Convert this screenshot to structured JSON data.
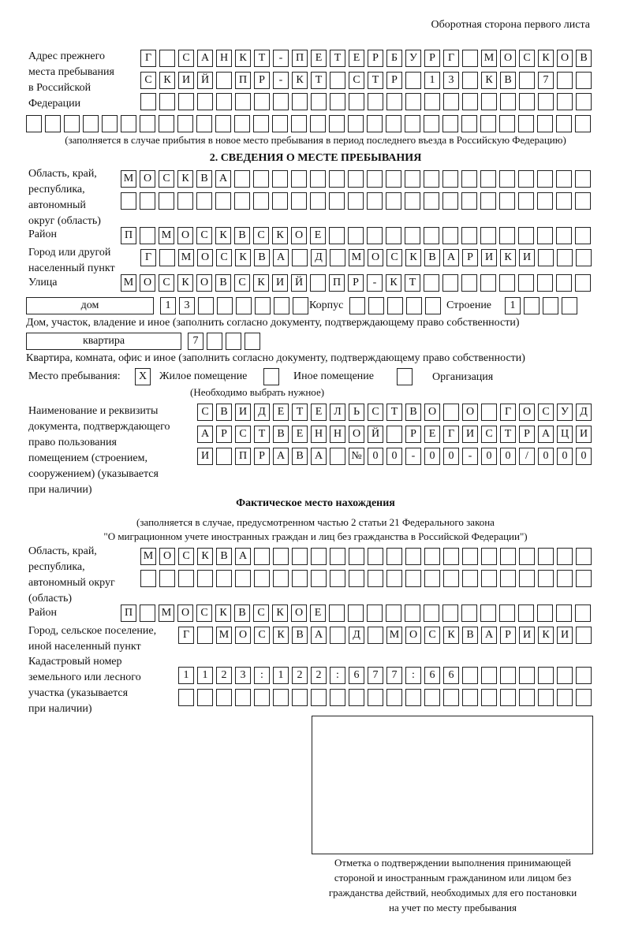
{
  "header": {
    "page_side": "Оборотная сторона первого листа"
  },
  "prev_address": {
    "label": "Адрес прежнего\nместа пребывания\nв Российской\nФедерации",
    "rows": [
      [
        "Г",
        "",
        "С",
        "А",
        "Н",
        "К",
        "Т",
        "-",
        "П",
        "Е",
        "Т",
        "Е",
        "Р",
        "Б",
        "У",
        "Р",
        "Г",
        "",
        "М",
        "О",
        "С",
        "К",
        "О",
        "В"
      ],
      [
        "С",
        "К",
        "И",
        "Й",
        "",
        "П",
        "Р",
        "-",
        "К",
        "Т",
        "",
        "С",
        "Т",
        "Р",
        "",
        "1",
        "3",
        "",
        "К",
        "В",
        "",
        "7",
        "",
        ""
      ],
      [
        "",
        "",
        "",
        "",
        "",
        "",
        "",
        "",
        "",
        "",
        "",
        "",
        "",
        "",
        "",
        "",
        "",
        "",
        "",
        "",
        "",
        "",
        "",
        ""
      ],
      [
        "",
        "",
        "",
        "",
        "",
        "",
        "",
        "",
        "",
        "",
        "",
        "",
        "",
        "",
        "",
        "",
        "",
        "",
        "",
        "",
        "",
        "",
        "",
        "",
        "",
        "",
        "",
        "",
        "",
        ""
      ]
    ],
    "note": "(заполняется в случае прибытия в новое место пребывания в период последнего въезда в Российскую Федерацию)"
  },
  "section2": {
    "title": "2. СВЕДЕНИЯ О МЕСТЕ ПРЕБЫВАНИЯ",
    "region_label": "Область, край,\nреспублика,\nавтономный\nокруг (область)",
    "region_rows": [
      [
        "М",
        "О",
        "С",
        "К",
        "В",
        "А",
        "",
        "",
        "",
        "",
        "",
        "",
        "",
        "",
        "",
        "",
        "",
        "",
        "",
        "",
        "",
        "",
        "",
        "",
        ""
      ],
      [
        "",
        "",
        "",
        "",
        "",
        "",
        "",
        "",
        "",
        "",
        "",
        "",
        "",
        "",
        "",
        "",
        "",
        "",
        "",
        "",
        "",
        "",
        "",
        "",
        ""
      ]
    ],
    "district_label": "Район",
    "district_row": [
      "П",
      "",
      "М",
      "О",
      "С",
      "К",
      "В",
      "С",
      "К",
      "О",
      "Е",
      "",
      "",
      "",
      "",
      "",
      "",
      "",
      "",
      "",
      "",
      "",
      "",
      "",
      ""
    ],
    "city_label": "Город или другой\nнаселенный пункт",
    "city_row": [
      "Г",
      "",
      "М",
      "О",
      "С",
      "К",
      "В",
      "А",
      "",
      "Д",
      "",
      "М",
      "О",
      "С",
      "К",
      "В",
      "А",
      "Р",
      "И",
      "К",
      "И",
      "",
      "",
      ""
    ],
    "street_label": "Улица",
    "street_row": [
      "М",
      "О",
      "С",
      "К",
      "О",
      "В",
      "С",
      "К",
      "И",
      "Й",
      "",
      "П",
      "Р",
      "-",
      "К",
      "Т",
      "",
      "",
      "",
      "",
      "",
      "",
      "",
      "",
      ""
    ],
    "house_type": "дом",
    "house_row": [
      "1",
      "3",
      "",
      "",
      "",
      "",
      "",
      ""
    ],
    "korpus_label": "Корпус",
    "korpus_row": [
      "",
      "",
      "",
      "",
      ""
    ],
    "building_label": "Строение",
    "building_row": [
      "1",
      "",
      "",
      ""
    ],
    "house_note": "Дом, участок, владение и иное (заполнить согласно документу, подтверждающему право собственности)",
    "flat_type": "квартира",
    "flat_row": [
      "7",
      "",
      "",
      ""
    ],
    "flat_note": "Квартира, комната, офис и иное (заполнить согласно документу, подтверждающему право собственности)",
    "stay_label": "Место пребывания:",
    "stay_options": [
      {
        "label": "Жилое помещение",
        "mark": "X"
      },
      {
        "label": "Иное помещение",
        "mark": ""
      },
      {
        "label": "Организация",
        "mark": ""
      }
    ],
    "stay_note": "(Необходимо выбрать нужное)",
    "doc_label": "Наименование и реквизиты\nдокумента, подтверждающего\nправо пользования\nпомещением (строением,\nсооружением) (указывается\nпри наличии)",
    "doc_rows": [
      [
        "С",
        "В",
        "И",
        "Д",
        "Е",
        "Т",
        "Е",
        "Л",
        "Ь",
        "С",
        "Т",
        "В",
        "О",
        "",
        "О",
        "",
        "Г",
        "О",
        "С",
        "У",
        "Д"
      ],
      [
        "А",
        "Р",
        "С",
        "Т",
        "В",
        "Е",
        "Н",
        "Н",
        "О",
        "Й",
        "",
        "Р",
        "Е",
        "Г",
        "И",
        "С",
        "Т",
        "Р",
        "А",
        "Ц",
        "И"
      ],
      [
        "И",
        "",
        "П",
        "Р",
        "А",
        "В",
        "А",
        "",
        "№",
        "0",
        "0",
        "-",
        "0",
        "0",
        "-",
        "0",
        "0",
        "/",
        "0",
        "0",
        "0"
      ]
    ]
  },
  "actual": {
    "title": "Фактическое место нахождения",
    "note1": "(заполняется в случае, предусмотренном частью 2 статьи 21 Федерального закона",
    "note2": "\"О миграционном учете иностранных граждан и лиц без гражданства в Российской Федерации\")",
    "region_label": "Область, край,\nреспублика,\nавтономный округ\n(область)",
    "region_rows": [
      [
        "М",
        "О",
        "С",
        "К",
        "В",
        "А",
        "",
        "",
        "",
        "",
        "",
        "",
        "",
        "",
        "",
        "",
        "",
        "",
        "",
        "",
        "",
        "",
        "",
        ""
      ],
      [
        "",
        "",
        "",
        "",
        "",
        "",
        "",
        "",
        "",
        "",
        "",
        "",
        "",
        "",
        "",
        "",
        "",
        "",
        "",
        "",
        "",
        "",
        "",
        ""
      ]
    ],
    "district_label": "Район",
    "district_row": [
      "П",
      "",
      "М",
      "О",
      "С",
      "К",
      "В",
      "С",
      "К",
      "О",
      "Е",
      "",
      "",
      "",
      "",
      "",
      "",
      "",
      "",
      "",
      "",
      "",
      "",
      "",
      ""
    ],
    "city_label": "Город, сельское поселение,\nиной населенный пункт",
    "city_row": [
      "Г",
      "",
      "М",
      "О",
      "С",
      "К",
      "В",
      "А",
      "",
      "Д",
      "",
      "М",
      "О",
      "С",
      "К",
      "В",
      "А",
      "Р",
      "И",
      "К",
      "И",
      ""
    ],
    "cadastre_label": "Кадастровый номер\nземельного или лесного\nучастка (указывается\nпри наличии)",
    "cadastre_rows": [
      [
        "1",
        "1",
        "2",
        "3",
        ":",
        "1",
        "2",
        "2",
        ":",
        "6",
        "7",
        "7",
        ":",
        "6",
        "6",
        "",
        "",
        "",
        "",
        "",
        "",
        ""
      ],
      [
        "",
        "",
        "",
        "",
        "",
        "",
        "",
        "",
        "",
        "",
        "",
        "",
        "",
        "",
        "",
        "",
        "",
        "",
        "",
        "",
        "",
        ""
      ]
    ]
  },
  "confirmation": {
    "caption": "Отметка о подтверждении выполнения принимающей\nстороной и иностранным гражданином или лицом без\nгражданства действий, необходимых для его постановки\nна учет по месту пребывания"
  }
}
